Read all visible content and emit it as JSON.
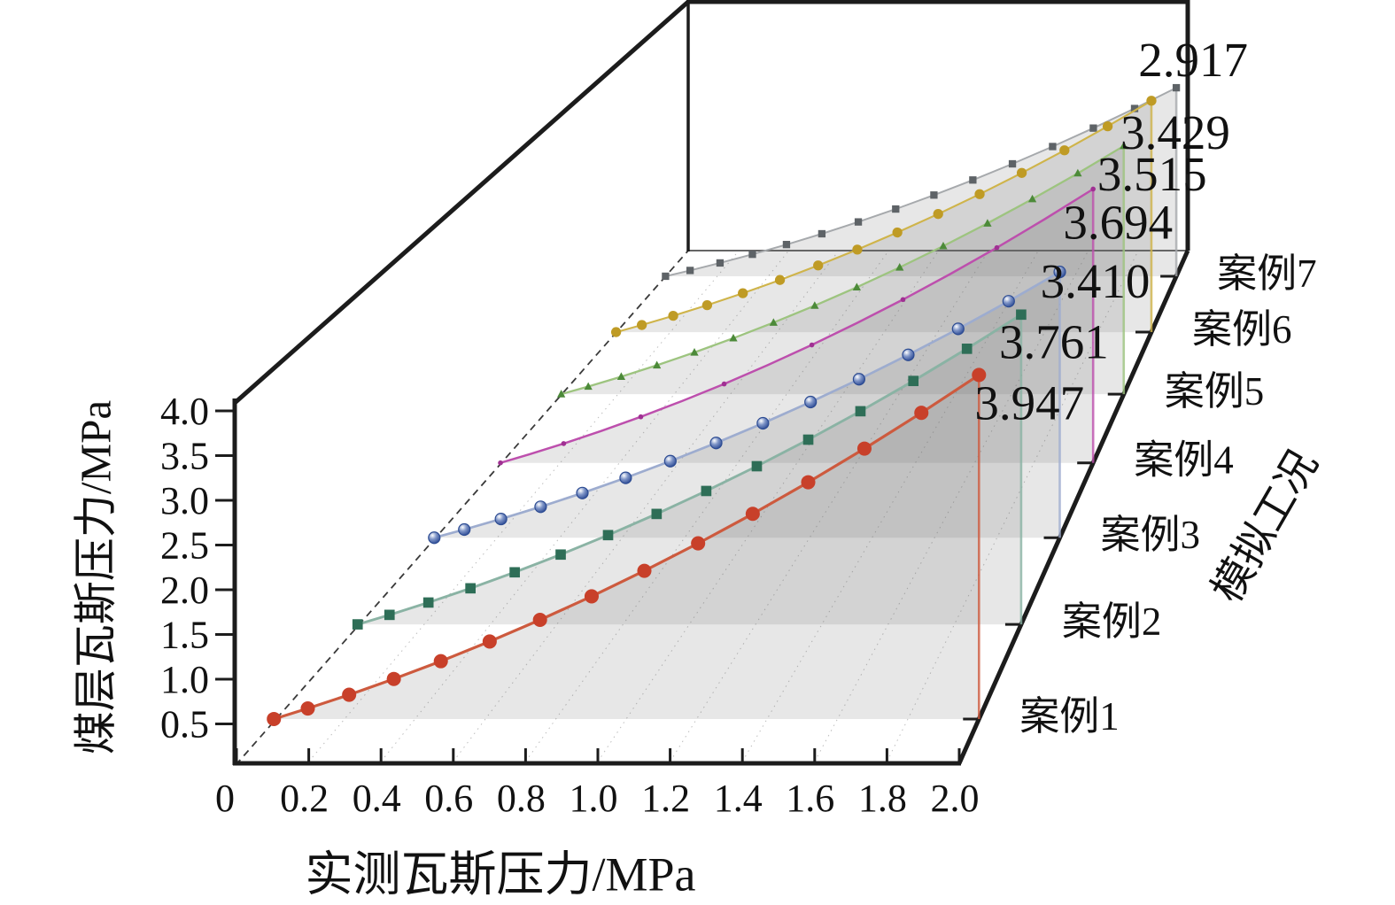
{
  "background": "#ffffff",
  "axes": {
    "x": {
      "title": "实测瓦斯压力/MPa",
      "tick_labels": [
        "0",
        "0.2",
        "0.4",
        "0.6",
        "0.8",
        "1.0",
        "1.2",
        "1.4",
        "1.6",
        "1.8",
        "2.0"
      ],
      "range": [
        0,
        2.0
      ]
    },
    "z": {
      "title": "煤层瓦斯压力/MPa",
      "tick_labels": [
        "0.5",
        "1.0",
        "1.5",
        "2.0",
        "2.5",
        "3.0",
        "3.5",
        "4.0"
      ],
      "range": [
        0,
        4.0
      ]
    },
    "depth": {
      "title": "模拟工况",
      "case_labels": [
        "案例1",
        "案例2",
        "案例3",
        "案例4",
        "案例5",
        "案例6",
        "案例7"
      ]
    }
  },
  "chart_data": {
    "type": "line",
    "projection": "3d-waterfall, 7 depth slices (案例1 front … 案例7 back), grey area fill under each curve, end value labelled at x=2.0",
    "title": "",
    "xlabel": "实测瓦斯压力/MPa",
    "ylabel": "模拟工况",
    "zlabel": "煤层瓦斯压力/MPa",
    "xlim": [
      0,
      2.0
    ],
    "ylim": [
      0,
      4.0
    ],
    "grid": "faint dotted depth gridlines at every 0.2 x-tick",
    "curve_model": "z(x) = end_value * (0.62*(x/2) + 0.38*(x/2)^2), curves start at z=0 on the dashed depth line",
    "x": [
      0,
      0.25,
      0.5,
      0.75,
      1.0,
      1.25,
      1.5,
      1.75,
      2.0
    ],
    "series": [
      {
        "name": "案例1",
        "end_value": 3.947,
        "end_label": "3.947",
        "marker": "circle",
        "line_color": "#cd5a3e",
        "marker_color": "#c8402a",
        "label_color": "#a53326",
        "z_values": [
          0,
          0.33,
          0.71,
          1.13,
          1.6,
          2.12,
          2.68,
          3.29,
          3.95
        ]
      },
      {
        "name": "案例2",
        "end_value": 3.761,
        "end_label": "3.761",
        "marker": "square",
        "line_color": "#8ab3a4",
        "marker_color": "#2e6e57",
        "label_color": "#2f7d66",
        "z_values": [
          0,
          0.31,
          0.67,
          1.08,
          1.52,
          2.02,
          2.55,
          3.13,
          3.76
        ]
      },
      {
        "name": "案例3",
        "end_value": 3.41,
        "end_label": "3.410",
        "marker": "sphere",
        "line_color": "#9daccf",
        "marker_color": "#31519c",
        "label_color": "#2c4b92",
        "z_values": [
          0,
          0.28,
          0.61,
          0.98,
          1.38,
          1.83,
          2.31,
          2.84,
          3.41
        ]
      },
      {
        "name": "案例4",
        "end_value": 3.694,
        "end_label": "3.694",
        "marker": "dot",
        "line_color": "#bd4fad",
        "marker_color": "#a03093",
        "label_color": "#8d2c74",
        "z_values": [
          0,
          0.31,
          0.66,
          1.06,
          1.5,
          1.98,
          2.51,
          3.08,
          3.69
        ]
      },
      {
        "name": "案例5",
        "end_value": 3.515,
        "end_label": "3.515",
        "marker": "triangle",
        "line_color": "#9dc47f",
        "marker_color": "#4c8a39",
        "label_color": "#3c6b33",
        "z_values": [
          0,
          0.29,
          0.63,
          1.0,
          1.42,
          1.88,
          2.39,
          2.93,
          3.52
        ]
      },
      {
        "name": "案例6",
        "end_value": 3.429,
        "end_label": "3.429",
        "marker": "circle",
        "line_color": "#cfb44a",
        "marker_color": "#bf9b25",
        "label_color": "#c3a02b",
        "z_values": [
          0,
          0.29,
          0.61,
          0.98,
          1.39,
          1.84,
          2.33,
          2.86,
          3.43
        ]
      },
      {
        "name": "案例7",
        "end_value": 2.917,
        "end_label": "2.917",
        "marker": "square",
        "line_color": "#a6a9ac",
        "marker_color": "#5e6367",
        "label_color": "#5c6874",
        "z_values": [
          0,
          0.24,
          0.52,
          0.83,
          1.18,
          1.56,
          1.98,
          2.43,
          2.92
        ]
      }
    ]
  }
}
